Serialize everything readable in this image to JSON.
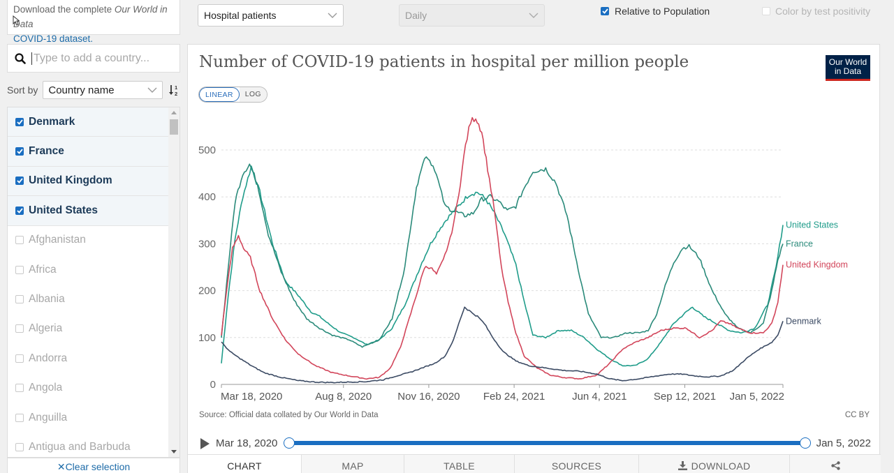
{
  "sidebar": {
    "download_text_1": "Download the complete ",
    "download_text_em": "Our World in Data",
    "download_link": "COVID-19 dataset.",
    "search_placeholder": "Type to add a country...",
    "sort_label": "Sort by",
    "sort_value": "Country name",
    "countries": [
      {
        "name": "Denmark",
        "checked": true
      },
      {
        "name": "France",
        "checked": true
      },
      {
        "name": "United Kingdom",
        "checked": true
      },
      {
        "name": "United States",
        "checked": true
      },
      {
        "name": "Afghanistan",
        "checked": false
      },
      {
        "name": "Africa",
        "checked": false
      },
      {
        "name": "Albania",
        "checked": false
      },
      {
        "name": "Algeria",
        "checked": false
      },
      {
        "name": "Andorra",
        "checked": false
      },
      {
        "name": "Angola",
        "checked": false
      },
      {
        "name": "Anguilla",
        "checked": false
      },
      {
        "name": "Antigua and Barbuda",
        "checked": false
      }
    ],
    "clear_label": "Clear selection"
  },
  "controls": {
    "metric": "Hospital patients",
    "interval": "Daily",
    "relative_label": "Relative to Population",
    "color_label": "Color by test positivity"
  },
  "logo": {
    "line1": "Our World",
    "line2": "in Data"
  },
  "scale": {
    "linear": "LINEAR",
    "log": "LOG"
  },
  "footer": {
    "source": "Source: Official data collated by Our World in Data",
    "license": "CC BY"
  },
  "timeline": {
    "start": "Mar 18, 2020",
    "end": "Jan 5, 2022"
  },
  "tabs": [
    {
      "label": "CHART",
      "active": true
    },
    {
      "label": "MAP",
      "active": false
    },
    {
      "label": "TABLE",
      "active": false
    },
    {
      "label": "SOURCES",
      "active": false
    },
    {
      "label": "DOWNLOAD",
      "active": false
    },
    {
      "label": "",
      "active": false
    }
  ],
  "colors": {
    "denmark": "#3b4a63",
    "france": "#2a8a7a",
    "united_kingdom": "#d2455a",
    "united_states": "#1f9c8a",
    "accent": "#1a6ec1"
  },
  "chart_data": {
    "type": "line",
    "title": "Number of COVID-19 patients in hospital per million people",
    "xlabel": "",
    "ylabel": "",
    "ylim": [
      0,
      500
    ],
    "yticks": [
      0,
      100,
      200,
      300,
      400,
      500
    ],
    "xlim": [
      0,
      658
    ],
    "xticks": [
      {
        "day": 0,
        "label": "Mar 18, 2020"
      },
      {
        "day": 143,
        "label": "Aug 8, 2020"
      },
      {
        "day": 243,
        "label": "Nov 16, 2020"
      },
      {
        "day": 343,
        "label": "Feb 24, 2021"
      },
      {
        "day": 443,
        "label": "Jun 4, 2021"
      },
      {
        "day": 543,
        "label": "Sep 12, 2021"
      },
      {
        "day": 658,
        "label": "Jan 5, 2022"
      }
    ],
    "series": [
      {
        "name": "United States",
        "color": "#1f9c8a",
        "points": [
          [
            0,
            45
          ],
          [
            8,
            190
          ],
          [
            16,
            310
          ],
          [
            25,
            400
          ],
          [
            35,
            465
          ],
          [
            45,
            410
          ],
          [
            60,
            300
          ],
          [
            75,
            220
          ],
          [
            90,
            190
          ],
          [
            105,
            155
          ],
          [
            115,
            145
          ],
          [
            125,
            130
          ],
          [
            140,
            110
          ],
          [
            155,
            100
          ],
          [
            170,
            85
          ],
          [
            185,
            95
          ],
          [
            200,
            120
          ],
          [
            215,
            170
          ],
          [
            225,
            215
          ],
          [
            235,
            260
          ],
          [
            245,
            300
          ],
          [
            255,
            330
          ],
          [
            265,
            355
          ],
          [
            275,
            375
          ],
          [
            280,
            385
          ],
          [
            290,
            405
          ],
          [
            300,
            410
          ],
          [
            310,
            395
          ],
          [
            320,
            365
          ],
          [
            332,
            320
          ],
          [
            345,
            255
          ],
          [
            355,
            175
          ],
          [
            365,
            105
          ],
          [
            380,
            100
          ],
          [
            395,
            115
          ],
          [
            410,
            115
          ],
          [
            425,
            100
          ],
          [
            440,
            75
          ],
          [
            455,
            55
          ],
          [
            470,
            40
          ],
          [
            485,
            40
          ],
          [
            500,
            55
          ],
          [
            515,
            90
          ],
          [
            530,
            130
          ],
          [
            545,
            155
          ],
          [
            552,
            165
          ],
          [
            565,
            145
          ],
          [
            580,
            130
          ],
          [
            595,
            115
          ],
          [
            610,
            110
          ],
          [
            625,
            120
          ],
          [
            640,
            170
          ],
          [
            650,
            250
          ],
          [
            658,
            340
          ]
        ]
      },
      {
        "name": "France",
        "color": "#2a8a7a",
        "points": [
          [
            0,
            100
          ],
          [
            8,
            250
          ],
          [
            16,
            390
          ],
          [
            25,
            450
          ],
          [
            33,
            470
          ],
          [
            42,
            430
          ],
          [
            55,
            320
          ],
          [
            70,
            240
          ],
          [
            85,
            180
          ],
          [
            100,
            140
          ],
          [
            115,
            120
          ],
          [
            130,
            105
          ],
          [
            150,
            95
          ],
          [
            165,
            80
          ],
          [
            185,
            95
          ],
          [
            200,
            140
          ],
          [
            215,
            250
          ],
          [
            225,
            380
          ],
          [
            232,
            450
          ],
          [
            240,
            490
          ],
          [
            250,
            460
          ],
          [
            262,
            380
          ],
          [
            272,
            370
          ],
          [
            285,
            360
          ],
          [
            295,
            365
          ],
          [
            305,
            395
          ],
          [
            315,
            400
          ],
          [
            325,
            390
          ],
          [
            335,
            370
          ],
          [
            345,
            380
          ],
          [
            355,
            420
          ],
          [
            365,
            455
          ],
          [
            380,
            460
          ],
          [
            392,
            430
          ],
          [
            405,
            360
          ],
          [
            420,
            230
          ],
          [
            430,
            150
          ],
          [
            445,
            100
          ],
          [
            460,
            100
          ],
          [
            475,
            110
          ],
          [
            490,
            110
          ],
          [
            500,
            115
          ],
          [
            510,
            150
          ],
          [
            520,
            210
          ],
          [
            530,
            260
          ],
          [
            540,
            290
          ],
          [
            548,
            295
          ],
          [
            560,
            270
          ],
          [
            575,
            200
          ],
          [
            590,
            150
          ],
          [
            605,
            120
          ],
          [
            620,
            110
          ],
          [
            635,
            130
          ],
          [
            645,
            200
          ],
          [
            652,
            265
          ],
          [
            658,
            300
          ]
        ]
      },
      {
        "name": "United Kingdom",
        "color": "#d2455a",
        "points": [
          [
            0,
            105
          ],
          [
            6,
            200
          ],
          [
            13,
            290
          ],
          [
            20,
            318
          ],
          [
            26,
            290
          ],
          [
            34,
            270
          ],
          [
            45,
            200
          ],
          [
            60,
            140
          ],
          [
            75,
            95
          ],
          [
            90,
            65
          ],
          [
            110,
            40
          ],
          [
            130,
            25
          ],
          [
            150,
            18
          ],
          [
            170,
            12
          ],
          [
            185,
            15
          ],
          [
            198,
            35
          ],
          [
            210,
            80
          ],
          [
            220,
            140
          ],
          [
            230,
            200
          ],
          [
            238,
            250
          ],
          [
            245,
            250
          ],
          [
            252,
            235
          ],
          [
            260,
            265
          ],
          [
            268,
            310
          ],
          [
            274,
            360
          ],
          [
            280,
            430
          ],
          [
            286,
            510
          ],
          [
            292,
            560
          ],
          [
            298,
            570
          ],
          [
            305,
            540
          ],
          [
            312,
            460
          ],
          [
            320,
            370
          ],
          [
            328,
            250
          ],
          [
            336,
            175
          ],
          [
            345,
            110
          ],
          [
            355,
            60
          ],
          [
            370,
            35
          ],
          [
            385,
            20
          ],
          [
            400,
            15
          ],
          [
            420,
            12
          ],
          [
            440,
            20
          ],
          [
            455,
            45
          ],
          [
            470,
            75
          ],
          [
            485,
            90
          ],
          [
            500,
            100
          ],
          [
            515,
            115
          ],
          [
            530,
            120
          ],
          [
            545,
            120
          ],
          [
            560,
            100
          ],
          [
            575,
            115
          ],
          [
            585,
            135
          ],
          [
            595,
            130
          ],
          [
            605,
            120
          ],
          [
            620,
            110
          ],
          [
            635,
            110
          ],
          [
            645,
            130
          ],
          [
            652,
            175
          ],
          [
            658,
            255
          ]
        ]
      },
      {
        "name": "Denmark",
        "color": "#3b4a63",
        "points": [
          [
            0,
            90
          ],
          [
            10,
            70
          ],
          [
            22,
            55
          ],
          [
            35,
            40
          ],
          [
            50,
            25
          ],
          [
            70,
            15
          ],
          [
            90,
            8
          ],
          [
            110,
            5
          ],
          [
            130,
            4
          ],
          [
            150,
            5
          ],
          [
            170,
            6
          ],
          [
            190,
            10
          ],
          [
            205,
            18
          ],
          [
            220,
            25
          ],
          [
            235,
            35
          ],
          [
            250,
            45
          ],
          [
            262,
            60
          ],
          [
            272,
            95
          ],
          [
            280,
            140
          ],
          [
            285,
            165
          ],
          [
            292,
            155
          ],
          [
            300,
            145
          ],
          [
            308,
            130
          ],
          [
            318,
            100
          ],
          [
            330,
            70
          ],
          [
            345,
            50
          ],
          [
            360,
            40
          ],
          [
            380,
            35
          ],
          [
            400,
            30
          ],
          [
            420,
            28
          ],
          [
            440,
            22
          ],
          [
            455,
            12
          ],
          [
            470,
            8
          ],
          [
            490,
            12
          ],
          [
            510,
            18
          ],
          [
            525,
            22
          ],
          [
            540,
            22
          ],
          [
            555,
            18
          ],
          [
            570,
            16
          ],
          [
            585,
            18
          ],
          [
            600,
            30
          ],
          [
            615,
            55
          ],
          [
            630,
            75
          ],
          [
            645,
            90
          ],
          [
            652,
            105
          ],
          [
            658,
            135
          ]
        ]
      }
    ]
  }
}
